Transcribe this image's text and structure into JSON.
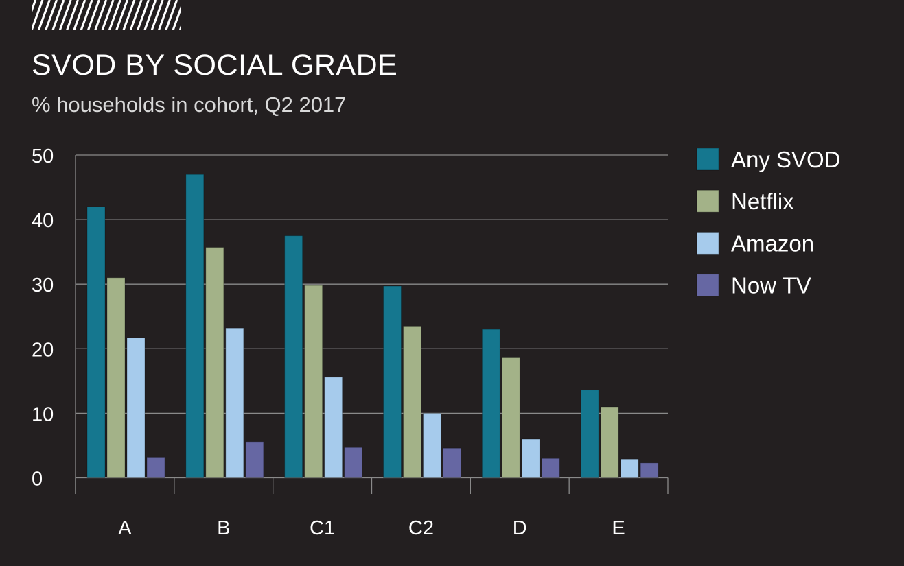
{
  "header": {
    "title": "SVOD BY SOCIAL GRADE",
    "subtitle": "% households in cohort, Q2 2017"
  },
  "chart_data": {
    "type": "bar",
    "title": "SVOD BY SOCIAL GRADE",
    "subtitle": "% households in cohort, Q2 2017",
    "xlabel": "",
    "ylabel": "",
    "categories": [
      "A",
      "B",
      "C1",
      "C2",
      "D",
      "E"
    ],
    "ylim": [
      0,
      50
    ],
    "yticks": [
      0,
      10,
      20,
      30,
      40,
      50
    ],
    "grid": true,
    "legend_position": "right",
    "series": [
      {
        "name": "Any SVOD",
        "color": "#15778f",
        "values": [
          42,
          47,
          37.5,
          29.7,
          23,
          13.6
        ]
      },
      {
        "name": "Netflix",
        "color": "#a3b288",
        "values": [
          31,
          35.7,
          29.8,
          23.5,
          18.6,
          11
        ]
      },
      {
        "name": "Amazon",
        "color": "#a6cbec",
        "values": [
          21.7,
          23.2,
          15.6,
          10,
          6,
          2.9
        ]
      },
      {
        "name": "Now TV",
        "color": "#6667a3",
        "values": [
          3.2,
          5.6,
          4.7,
          4.6,
          3,
          2.3
        ]
      }
    ]
  },
  "colors": {
    "background": "#231f20",
    "gridline": "#8a8a8a",
    "text": "#ffffff"
  }
}
